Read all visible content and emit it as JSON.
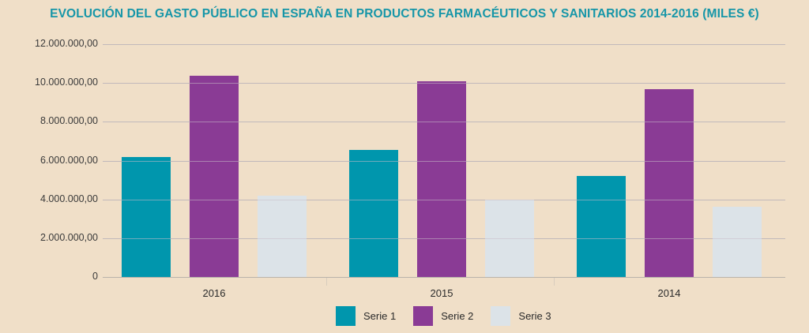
{
  "title": "EVOLUCIÓN DEL GASTO PÚBLICO EN ESPAÑA EN PRODUCTOS FARMACÉUTICOS Y SANITARIOS 2014-2016 (MILES €)",
  "colors": {
    "serie1": "#0096ad",
    "serie2": "#8a3b95",
    "serie3": "#dce3e8",
    "title": "#1696a8",
    "background": "#f0dfc8"
  },
  "y_ticks": [
    "0",
    "2.000.000,00",
    "4.000.000,00",
    "6.000.000,00",
    "8.000.000,00",
    "10.000.000,00",
    "12.000.000,00"
  ],
  "legend": [
    {
      "label": "Serie 1",
      "color": "#0096ad"
    },
    {
      "label": "Serie 2",
      "color": "#8a3b95"
    },
    {
      "label": "Serie 3",
      "color": "#dce3e8"
    }
  ],
  "chart_data": {
    "type": "bar",
    "title": "EVOLUCIÓN DEL GASTO PÚBLICO EN ESPAÑA EN PRODUCTOS FARMACÉUTICOS Y SANITARIOS 2014-2016 (MILES €)",
    "categories": [
      "2016",
      "2015",
      "2014"
    ],
    "series": [
      {
        "name": "Serie 1",
        "values": [
          6200000,
          6530000,
          5210000
        ]
      },
      {
        "name": "Serie 2",
        "values": [
          10370000,
          10100000,
          9670000
        ]
      },
      {
        "name": "Serie 3",
        "values": [
          4200000,
          3990000,
          3620000
        ]
      }
    ],
    "xlabel": "",
    "ylabel": "",
    "ylim": [
      0,
      12000000
    ],
    "yticks": [
      0,
      2000000,
      4000000,
      6000000,
      8000000,
      10000000,
      12000000
    ],
    "grid": true,
    "legend_position": "bottom"
  }
}
